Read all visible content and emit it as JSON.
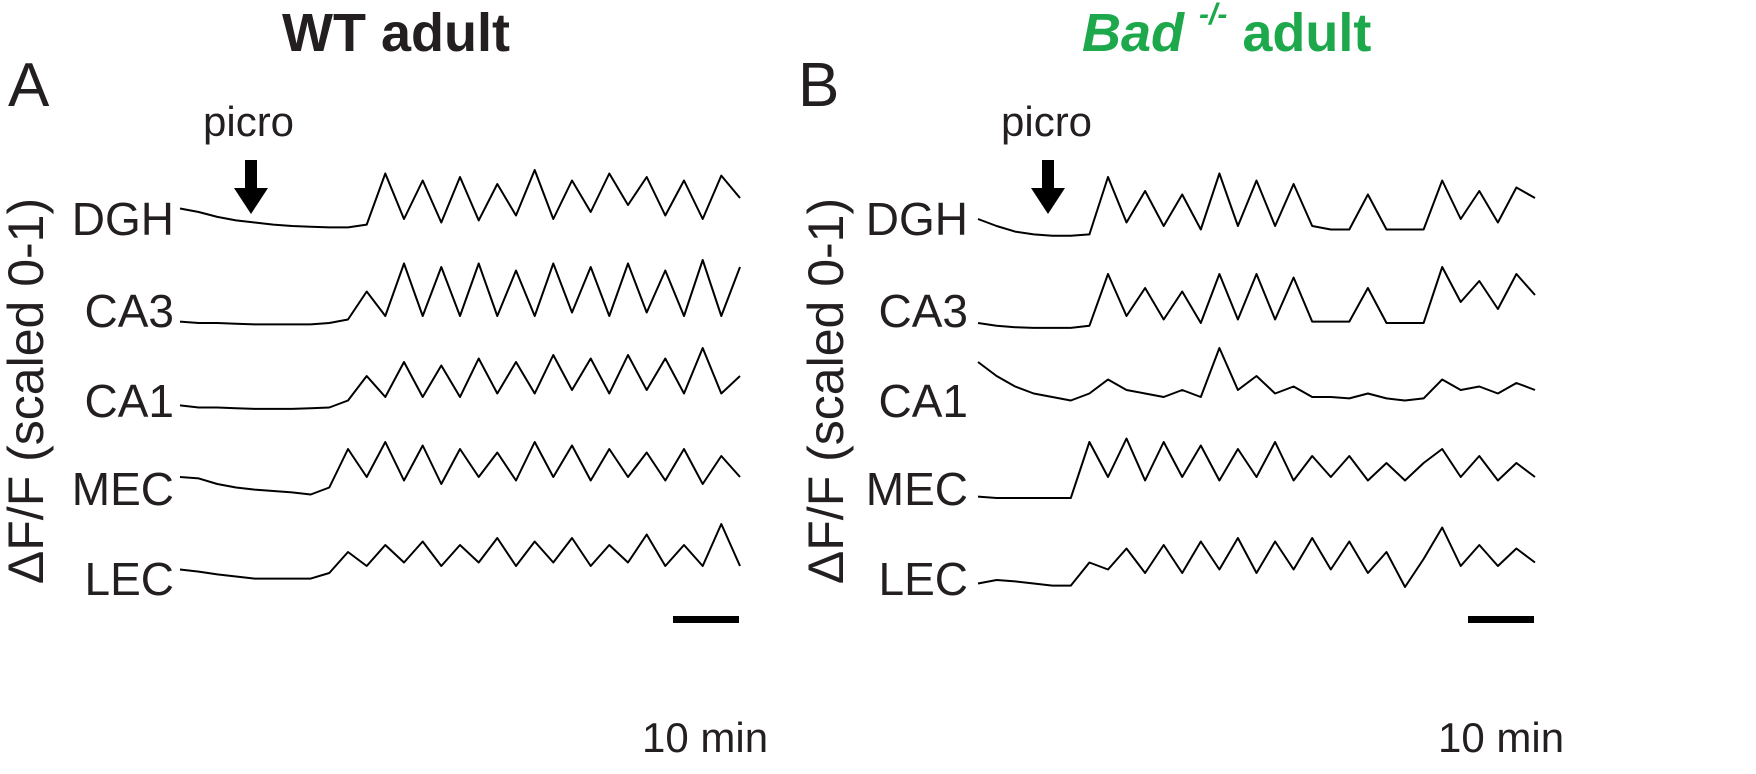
{
  "colors": {
    "trace": "#000000",
    "text": "#231f20",
    "accent_green": "#1ca84b"
  },
  "panels": {
    "A": {
      "letter": "A",
      "title": "WT adult",
      "ylabel": "ΔF/F (scaled 0-1)",
      "stim_label": "picro",
      "scalebar_label": "10 min"
    },
    "B": {
      "letter": "B",
      "title_italic": "Bad",
      "title_sup": "-/-",
      "title_rest": "adult",
      "ylabel": "ΔF/F (scaled 0-1)",
      "stim_label": "picro",
      "scalebar_label": "10 min"
    }
  },
  "chart_data": [
    {
      "type": "line",
      "title": "WT adult",
      "ylabel": "ΔF/F (scaled 0-1)",
      "annotations": [
        "picro",
        "10 min"
      ],
      "series": [
        {
          "name": "DGH",
          "values": [
            0.45,
            0.4,
            0.33,
            0.28,
            0.25,
            0.22,
            0.2,
            0.19,
            0.18,
            0.18,
            0.22,
            0.95,
            0.3,
            0.85,
            0.25,
            0.9,
            0.28,
            0.8,
            0.35,
            1.0,
            0.3,
            0.85,
            0.4,
            0.95,
            0.5,
            0.9,
            0.35,
            0.85,
            0.3,
            0.92,
            0.6
          ]
        },
        {
          "name": "CA3",
          "values": [
            0.12,
            0.1,
            0.1,
            0.09,
            0.08,
            0.08,
            0.08,
            0.08,
            0.1,
            0.15,
            0.55,
            0.2,
            0.95,
            0.2,
            0.9,
            0.2,
            0.95,
            0.2,
            0.85,
            0.2,
            0.95,
            0.25,
            0.9,
            0.2,
            0.95,
            0.25,
            0.85,
            0.2,
            1.0,
            0.2,
            0.9
          ]
        },
        {
          "name": "CA1",
          "values": [
            0.18,
            0.15,
            0.15,
            0.14,
            0.13,
            0.13,
            0.13,
            0.14,
            0.15,
            0.25,
            0.6,
            0.3,
            0.8,
            0.3,
            0.75,
            0.3,
            0.85,
            0.35,
            0.8,
            0.35,
            0.9,
            0.4,
            0.85,
            0.35,
            0.9,
            0.4,
            0.85,
            0.35,
            1.0,
            0.35,
            0.6
          ]
        },
        {
          "name": "MEC",
          "values": [
            0.4,
            0.38,
            0.3,
            0.25,
            0.22,
            0.2,
            0.18,
            0.15,
            0.25,
            0.8,
            0.4,
            0.9,
            0.35,
            0.85,
            0.3,
            0.8,
            0.4,
            0.75,
            0.35,
            0.9,
            0.4,
            0.85,
            0.35,
            0.8,
            0.4,
            0.75,
            0.35,
            0.8,
            0.3,
            0.7,
            0.4
          ]
        },
        {
          "name": "LEC",
          "values": [
            0.35,
            0.32,
            0.28,
            0.25,
            0.22,
            0.22,
            0.22,
            0.22,
            0.3,
            0.6,
            0.4,
            0.7,
            0.45,
            0.75,
            0.4,
            0.7,
            0.45,
            0.8,
            0.4,
            0.75,
            0.45,
            0.8,
            0.4,
            0.7,
            0.45,
            0.85,
            0.4,
            0.7,
            0.4,
            1.0,
            0.4
          ]
        }
      ]
    },
    {
      "type": "line",
      "title": "Bad -/- adult",
      "ylabel": "ΔF/F (scaled 0-1)",
      "annotations": [
        "picro",
        "10 min"
      ],
      "series": [
        {
          "name": "DGH",
          "values": [
            0.3,
            0.2,
            0.12,
            0.08,
            0.06,
            0.06,
            0.08,
            0.9,
            0.25,
            0.7,
            0.2,
            0.65,
            0.15,
            0.95,
            0.2,
            0.85,
            0.2,
            0.8,
            0.2,
            0.15,
            0.15,
            0.65,
            0.15,
            0.15,
            0.15,
            0.85,
            0.3,
            0.7,
            0.25,
            0.75,
            0.6
          ]
        },
        {
          "name": "CA3",
          "values": [
            0.1,
            0.06,
            0.04,
            0.03,
            0.03,
            0.03,
            0.06,
            0.8,
            0.2,
            0.6,
            0.15,
            0.55,
            0.1,
            0.8,
            0.15,
            0.8,
            0.15,
            0.75,
            0.12,
            0.12,
            0.12,
            0.6,
            0.1,
            0.1,
            0.1,
            0.9,
            0.4,
            0.7,
            0.3,
            0.8,
            0.5
          ]
        },
        {
          "name": "CA1",
          "values": [
            0.8,
            0.6,
            0.45,
            0.35,
            0.3,
            0.25,
            0.35,
            0.55,
            0.4,
            0.35,
            0.3,
            0.4,
            0.3,
            1.0,
            0.4,
            0.6,
            0.35,
            0.45,
            0.3,
            0.3,
            0.28,
            0.35,
            0.28,
            0.25,
            0.28,
            0.55,
            0.4,
            0.45,
            0.35,
            0.5,
            0.4
          ]
        },
        {
          "name": "MEC",
          "values": [
            0.12,
            0.1,
            0.1,
            0.1,
            0.1,
            0.1,
            0.9,
            0.4,
            0.95,
            0.35,
            0.9,
            0.4,
            0.85,
            0.35,
            0.8,
            0.4,
            0.9,
            0.35,
            0.7,
            0.4,
            0.7,
            0.35,
            0.6,
            0.35,
            0.6,
            0.8,
            0.4,
            0.7,
            0.35,
            0.6,
            0.4
          ]
        },
        {
          "name": "LEC",
          "values": [
            0.15,
            0.2,
            0.18,
            0.15,
            0.12,
            0.12,
            0.45,
            0.35,
            0.65,
            0.3,
            0.7,
            0.3,
            0.75,
            0.35,
            0.8,
            0.3,
            0.75,
            0.35,
            0.8,
            0.35,
            0.75,
            0.3,
            0.6,
            0.1,
            0.5,
            0.95,
            0.4,
            0.7,
            0.4,
            0.65,
            0.45
          ]
        }
      ]
    }
  ]
}
